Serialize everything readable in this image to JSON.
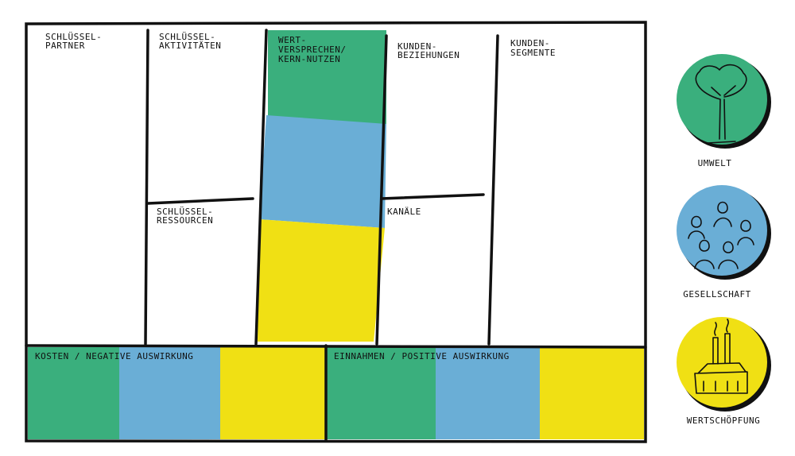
{
  "canvas": {
    "sections": [
      {
        "lines": [
          "SCHLÜSSEL-",
          "PARTNER"
        ]
      },
      {
        "lines": [
          "SCHLÜSSEL-",
          "AKTIVITÄTEN"
        ]
      },
      {
        "lines": [
          "WERT-",
          "VERSPRECHEN/",
          "KERN-NUTZEN"
        ]
      },
      {
        "lines": [
          "KUNDEN-",
          "BEZIEHUNGEN"
        ]
      },
      {
        "lines": [
          "KUNDEN-",
          "SEGMENTE"
        ]
      },
      {
        "lines": [
          "SCHLÜSSEL-",
          "RESSOURCEN"
        ]
      },
      {
        "lines": [
          "KANÄLE"
        ]
      },
      {
        "lines": [
          "KOSTEN / NEGATIVE AUSWIRKUNG"
        ]
      },
      {
        "lines": [
          "EINNAHMEN / POSITIVE AUSWIRKUNG"
        ]
      }
    ]
  },
  "impact": [
    {
      "label": "UMWELT"
    },
    {
      "label": "GESELLSCHAFT"
    },
    {
      "label": "WERTSCHÖPFUNG"
    }
  ]
}
